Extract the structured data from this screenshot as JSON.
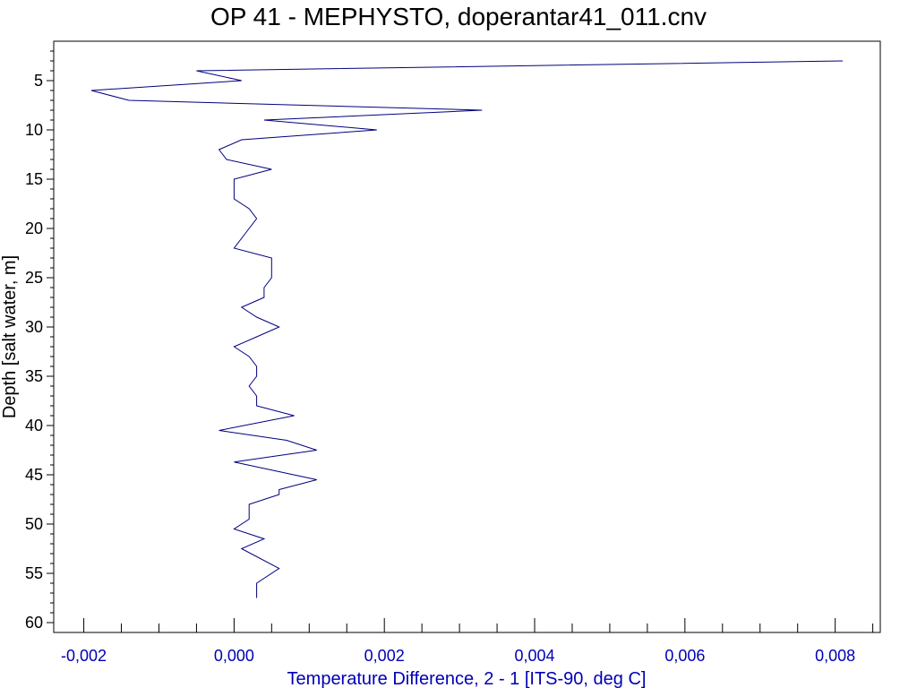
{
  "chart_data": {
    "type": "line",
    "title": "OP 41 - MEPHYSTO, doperantar41_011.cnv",
    "xlabel": "Temperature Difference, 2 - 1 [ITS-90, deg C]",
    "ylabel": "Depth [salt water, m]",
    "xlim": [
      -0.0024,
      0.0086
    ],
    "ylim": [
      1,
      61
    ],
    "y_inverted": true,
    "x_ticks": [
      -0.002,
      0.0,
      0.002,
      0.004,
      0.006,
      0.008
    ],
    "x_tick_labels": [
      "-0,002",
      "0,000",
      "0,002",
      "0,004",
      "0,006",
      "0,008"
    ],
    "y_ticks": [
      5,
      10,
      15,
      20,
      25,
      30,
      35,
      40,
      45,
      50,
      55,
      60
    ],
    "y_tick_labels": [
      "5",
      "10",
      "15",
      "20",
      "25",
      "30",
      "35",
      "40",
      "45",
      "50",
      "55",
      "60"
    ],
    "grid": false,
    "x_color": "#0000b4",
    "line_color": "#00007f",
    "series": [
      {
        "points": [
          [
            0.0081,
            3.0
          ],
          [
            -0.0005,
            4.0
          ],
          [
            0.0001,
            5.0
          ],
          [
            -0.0019,
            6.0
          ],
          [
            -0.0014,
            7.0
          ],
          [
            0.0033,
            8.0
          ],
          [
            0.0004,
            9.0
          ],
          [
            0.0019,
            10.0
          ],
          [
            0.0001,
            11.0
          ],
          [
            -0.0002,
            12.0
          ],
          [
            -0.0001,
            13.0
          ],
          [
            0.0005,
            14.0
          ],
          [
            0.0,
            15.0
          ],
          [
            0.0,
            16.0
          ],
          [
            0.0,
            17.0
          ],
          [
            0.0002,
            18.0
          ],
          [
            0.0003,
            19.0
          ],
          [
            0.0002,
            20.0
          ],
          [
            0.0001,
            21.0
          ],
          [
            0.0,
            22.0
          ],
          [
            0.0005,
            23.0
          ],
          [
            0.0005,
            24.0
          ],
          [
            0.0005,
            25.0
          ],
          [
            0.0004,
            26.0
          ],
          [
            0.0004,
            27.0
          ],
          [
            0.0001,
            28.0
          ],
          [
            0.0003,
            29.0
          ],
          [
            0.0006,
            30.0
          ],
          [
            0.0003,
            31.0
          ],
          [
            0.0,
            32.0
          ],
          [
            0.0002,
            33.0
          ],
          [
            0.0003,
            34.0
          ],
          [
            0.0003,
            35.0
          ],
          [
            0.0002,
            36.0
          ],
          [
            0.0003,
            37.0
          ],
          [
            0.0003,
            38.0
          ],
          [
            0.0008,
            39.0
          ],
          [
            -0.0002,
            40.5
          ],
          [
            0.0007,
            41.5
          ],
          [
            0.0011,
            42.5
          ],
          [
            0.0,
            43.7
          ],
          [
            0.0011,
            45.5
          ],
          [
            0.0006,
            46.5
          ],
          [
            0.0006,
            47.0
          ],
          [
            0.0002,
            48.0
          ],
          [
            0.0002,
            49.5
          ],
          [
            0.0,
            50.5
          ],
          [
            0.0004,
            51.5
          ],
          [
            0.0001,
            52.5
          ],
          [
            0.0006,
            54.5
          ],
          [
            0.0003,
            56.0
          ],
          [
            0.0003,
            57.5
          ]
        ]
      }
    ]
  }
}
